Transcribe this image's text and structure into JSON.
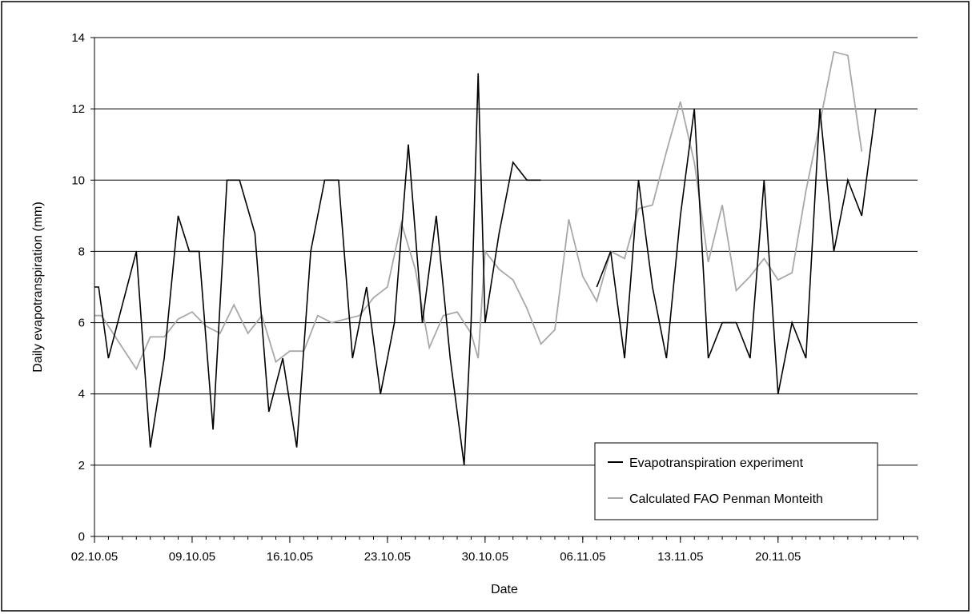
{
  "chart_data": {
    "type": "line",
    "title": "",
    "xlabel": "Date",
    "ylabel": "Daily evapotranspiration (mm)",
    "ylim": [
      0,
      14
    ],
    "yticks": [
      "0",
      "2",
      "4",
      "6",
      "8",
      "10",
      "12",
      "14"
    ],
    "xlim": [
      0,
      59
    ],
    "xtick_labels": [
      "02.10.05",
      "09.10.05",
      "16.10.05",
      "23.10.05",
      "30.10.05",
      "06.11.05",
      "13.11.05",
      "20.11.05"
    ],
    "xtick_day_index": [
      0,
      7,
      14,
      21,
      28,
      35,
      42,
      49
    ],
    "grid": "horizontal",
    "legend_position": "lower-right",
    "series": [
      {
        "name": "Evapotranspiration experiment",
        "color": "#000000",
        "points": [
          [
            0,
            7.0
          ],
          [
            0.3,
            7.0
          ],
          [
            1,
            5.0
          ],
          [
            2,
            6.5
          ],
          [
            3,
            8.0
          ],
          [
            4,
            2.5
          ],
          [
            5,
            5.0
          ],
          [
            6,
            9.0
          ],
          [
            6.8,
            8.0
          ],
          [
            7.5,
            8.0
          ],
          [
            8.5,
            3.0
          ],
          [
            9.5,
            10.0
          ],
          [
            10.4,
            10.0
          ],
          [
            11.5,
            8.5
          ],
          [
            12.5,
            3.5
          ],
          [
            13.5,
            5.0
          ],
          [
            14.5,
            2.5
          ],
          [
            15.5,
            8.0
          ],
          [
            16.5,
            10.0
          ],
          [
            17.5,
            10.0
          ],
          [
            18.5,
            5.0
          ],
          [
            19.5,
            7.0
          ],
          [
            20.5,
            4.0
          ],
          [
            21.5,
            6.0
          ],
          [
            22.5,
            11.0
          ],
          [
            23.5,
            6.0
          ],
          [
            24.5,
            9.0
          ],
          [
            25.5,
            5.0
          ],
          [
            26.5,
            2.0
          ],
          [
            27.0,
            6.0
          ],
          [
            27.5,
            13.0
          ],
          [
            28.0,
            6.0
          ],
          [
            29.0,
            8.5
          ],
          [
            30.0,
            10.5
          ],
          [
            31.0,
            10.0
          ],
          [
            32.0,
            10.0
          ],
          null,
          [
            36.0,
            7.0
          ],
          [
            37.0,
            8.0
          ],
          [
            38.0,
            5.0
          ],
          [
            39.0,
            10.0
          ],
          [
            40.0,
            7.0
          ],
          [
            41.0,
            5.0
          ],
          [
            42.0,
            9.0
          ],
          [
            43.0,
            12.0
          ],
          [
            44.0,
            5.0
          ],
          [
            45.0,
            6.0
          ],
          [
            46.0,
            6.0
          ],
          [
            47.0,
            5.0
          ],
          [
            48.0,
            10.0
          ],
          [
            49.0,
            4.0
          ],
          [
            50.0,
            6.0
          ],
          [
            51.0,
            5.0
          ],
          [
            52.0,
            12.0
          ],
          [
            53.0,
            8.0
          ],
          [
            54.0,
            10.0
          ],
          [
            55.0,
            9.0
          ],
          [
            56.0,
            12.0
          ]
        ]
      },
      {
        "name": "Calculated FAO Penman Monteith",
        "color": "#a8a8a8",
        "points": [
          [
            0,
            6.2
          ],
          [
            0.5,
            6.2
          ],
          [
            1,
            5.9
          ],
          [
            2,
            5.3
          ],
          [
            3,
            4.7
          ],
          [
            4,
            5.6
          ],
          [
            5,
            5.6
          ],
          [
            6,
            6.1
          ],
          [
            7,
            6.3
          ],
          [
            8,
            5.9
          ],
          [
            9,
            5.7
          ],
          [
            10,
            6.5
          ],
          [
            11,
            5.7
          ],
          [
            12,
            6.2
          ],
          [
            13,
            4.9
          ],
          [
            14,
            5.2
          ],
          [
            15,
            5.2
          ],
          [
            16,
            6.2
          ],
          [
            17,
            6.0
          ],
          [
            18,
            6.1
          ],
          [
            19,
            6.2
          ],
          [
            20,
            6.7
          ],
          [
            21,
            7.0
          ],
          [
            22,
            8.8
          ],
          [
            23,
            7.5
          ],
          [
            24,
            5.3
          ],
          [
            25,
            6.2
          ],
          [
            26,
            6.3
          ],
          [
            27,
            5.7
          ],
          [
            27.5,
            5.0
          ],
          [
            28,
            8.0
          ],
          [
            29,
            7.5
          ],
          [
            30,
            7.2
          ],
          [
            31,
            6.4
          ],
          [
            32,
            5.4
          ],
          [
            33,
            5.8
          ],
          [
            34,
            8.9
          ],
          [
            35,
            7.3
          ],
          [
            36,
            6.6
          ],
          [
            37,
            8.0
          ],
          [
            38,
            7.8
          ],
          [
            39,
            9.2
          ],
          [
            40,
            9.3
          ],
          [
            41,
            10.8
          ],
          [
            42,
            12.2
          ],
          [
            43,
            10.5
          ],
          [
            44,
            7.7
          ],
          [
            45,
            9.3
          ],
          [
            46,
            6.9
          ],
          [
            47,
            7.3
          ],
          [
            48,
            7.8
          ],
          [
            49,
            7.2
          ],
          [
            50,
            7.4
          ],
          [
            51,
            9.7
          ],
          [
            52,
            11.6
          ],
          [
            53,
            13.6
          ],
          [
            54,
            13.5
          ],
          [
            55,
            10.8
          ]
        ]
      }
    ]
  }
}
